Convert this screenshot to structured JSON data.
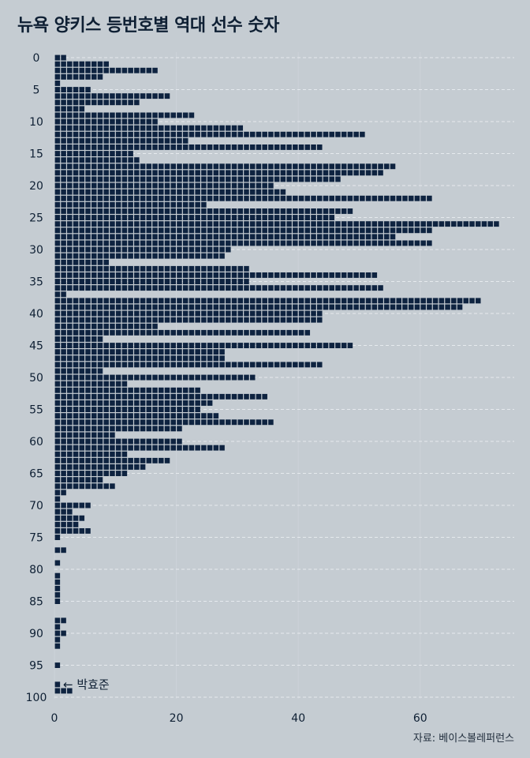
{
  "title": "뉴욕 양키스 등번호별 역대 선수 숫자",
  "caption": "자료: 베이스볼레퍼런스",
  "chart_data": {
    "type": "bar",
    "orientation": "horizontal",
    "style": "waffle-unit-squares",
    "title": "뉴욕 양키스 등번호별 역대 선수 숫자",
    "xlabel": "",
    "ylabel": "",
    "x_ticks": [
      0,
      20,
      40,
      60
    ],
    "y_ticks": [
      0,
      5,
      10,
      15,
      20,
      25,
      30,
      35,
      40,
      45,
      50,
      55,
      60,
      65,
      70,
      75,
      80,
      85,
      90,
      95,
      100
    ],
    "xlim": [
      0,
      75
    ],
    "ylim": [
      0,
      100
    ],
    "grid": true,
    "bar_color": "#0e2340",
    "categories": [
      0,
      1,
      2,
      3,
      4,
      5,
      6,
      7,
      8,
      9,
      10,
      11,
      12,
      13,
      14,
      15,
      16,
      17,
      18,
      19,
      20,
      21,
      22,
      23,
      24,
      25,
      26,
      27,
      28,
      29,
      30,
      31,
      32,
      33,
      34,
      35,
      36,
      37,
      38,
      39,
      40,
      41,
      42,
      43,
      44,
      45,
      46,
      47,
      48,
      49,
      50,
      51,
      52,
      53,
      54,
      55,
      56,
      57,
      58,
      59,
      60,
      61,
      62,
      63,
      64,
      65,
      66,
      67,
      68,
      69,
      70,
      71,
      72,
      73,
      74,
      75,
      76,
      77,
      78,
      79,
      80,
      81,
      82,
      83,
      84,
      85,
      86,
      87,
      88,
      89,
      90,
      91,
      92,
      93,
      94,
      95,
      96,
      97,
      98,
      99
    ],
    "values": [
      2,
      9,
      17,
      8,
      1,
      6,
      19,
      14,
      5,
      23,
      17,
      31,
      51,
      22,
      44,
      13,
      14,
      56,
      54,
      47,
      36,
      38,
      62,
      25,
      49,
      46,
      73,
      62,
      56,
      62,
      29,
      28,
      9,
      32,
      53,
      32,
      54,
      2,
      70,
      67,
      44,
      44,
      17,
      42,
      8,
      49,
      28,
      28,
      44,
      8,
      33,
      12,
      24,
      35,
      26,
      24,
      27,
      36,
      21,
      10,
      21,
      28,
      12,
      19,
      15,
      12,
      8,
      10,
      2,
      1,
      6,
      3,
      5,
      4,
      6,
      1,
      0,
      2,
      0,
      1,
      0,
      1,
      1,
      1,
      1,
      1,
      0,
      0,
      2,
      1,
      2,
      1,
      1,
      0,
      0,
      1,
      0,
      0,
      1,
      3
    ],
    "annotation": {
      "category": 98,
      "text": "← 박효준"
    }
  }
}
